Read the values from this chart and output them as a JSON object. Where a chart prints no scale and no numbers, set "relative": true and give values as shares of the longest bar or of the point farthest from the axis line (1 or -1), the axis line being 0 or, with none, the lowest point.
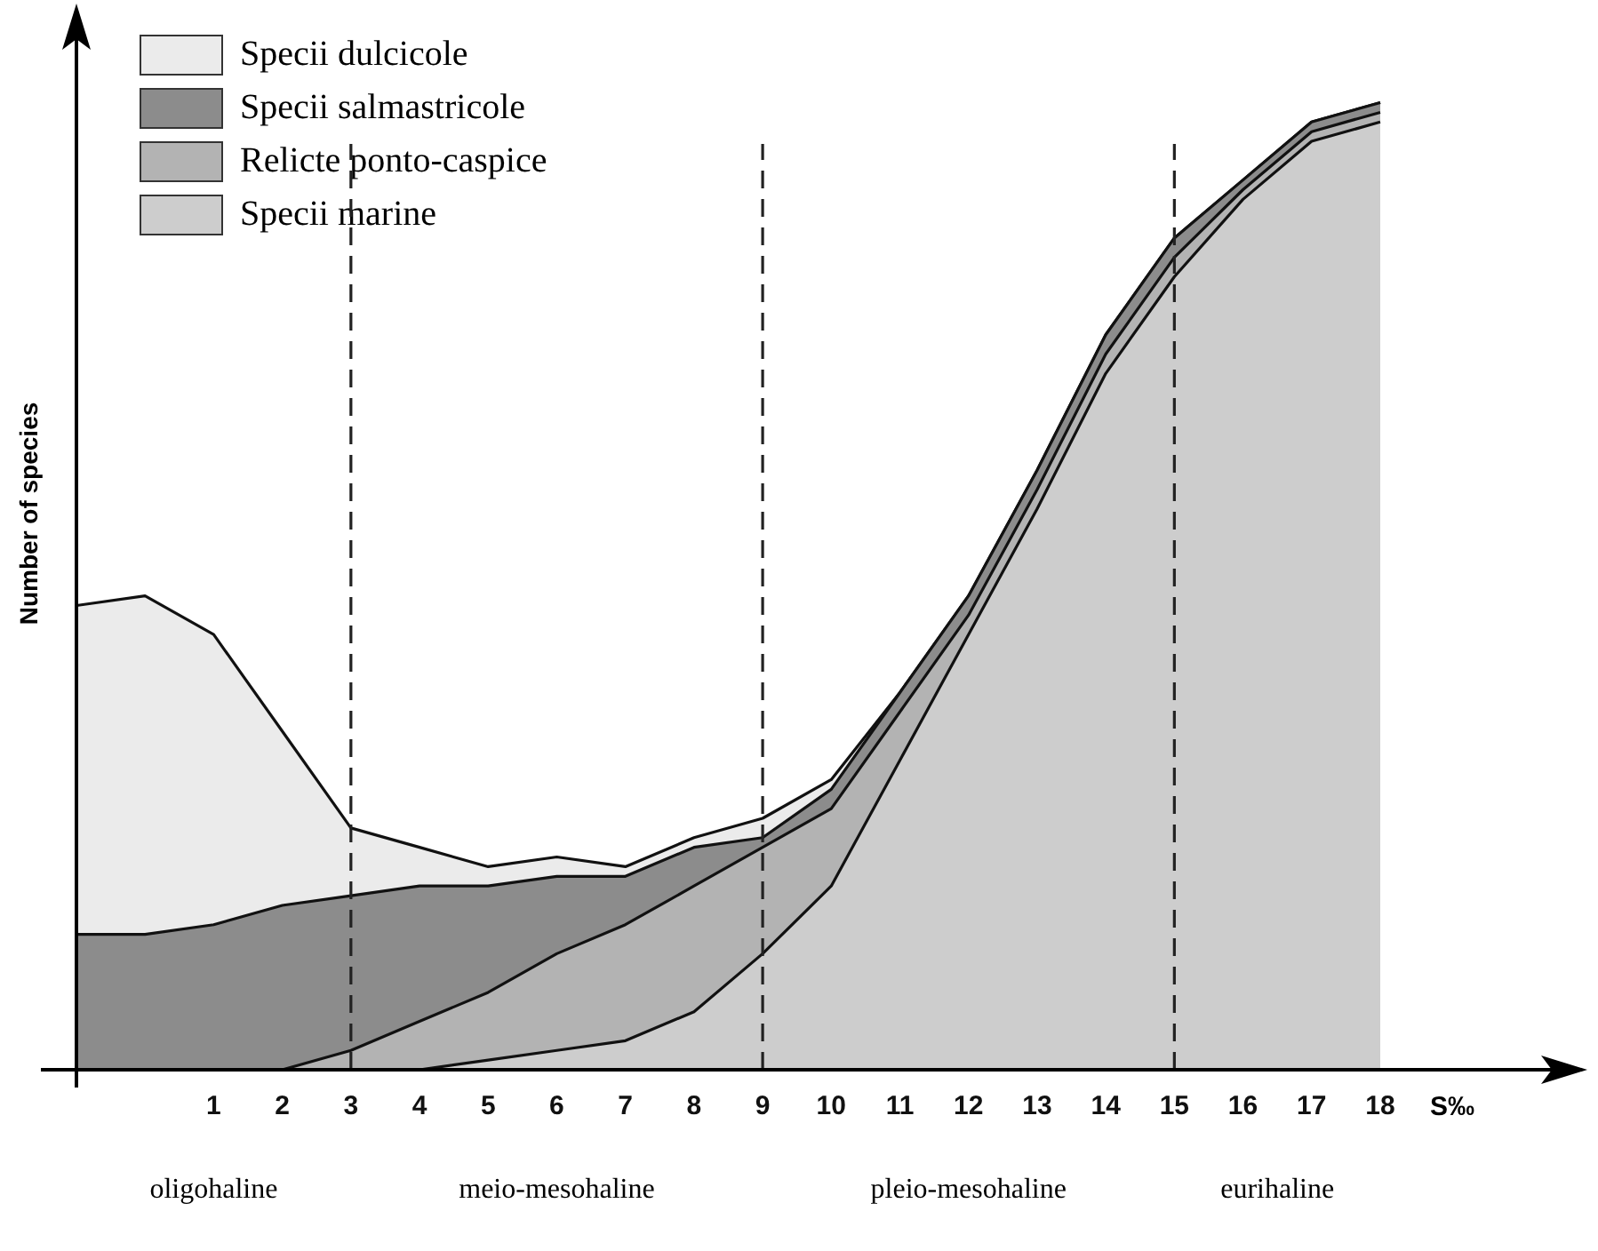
{
  "chart_data": {
    "type": "area",
    "stacked": true,
    "relative": true,
    "xlabel": "S‰",
    "ylabel": "Number of species",
    "x": [
      -1,
      0,
      1,
      2,
      3,
      4,
      5,
      6,
      7,
      8,
      9,
      10,
      11,
      12,
      13,
      14,
      15,
      16,
      17,
      18
    ],
    "xlim": [
      -1,
      20.5
    ],
    "xticks": [
      1,
      2,
      3,
      4,
      5,
      6,
      7,
      8,
      9,
      10,
      11,
      12,
      13,
      14,
      15,
      16,
      17,
      18
    ],
    "series": [
      {
        "name": "Specii marine",
        "color": "#cdcdcd",
        "values": [
          0,
          0,
          0,
          0,
          0,
          0,
          0.01,
          0.02,
          0.03,
          0.06,
          0.12,
          0.19,
          0.32,
          0.45,
          0.58,
          0.72,
          0.82,
          0.9,
          0.96,
          0.98
        ]
      },
      {
        "name": "Relicte ponto-caspice",
        "color": "#b3b3b3",
        "values": [
          0,
          0,
          0,
          0,
          0.02,
          0.05,
          0.07,
          0.1,
          0.12,
          0.13,
          0.11,
          0.08,
          0.05,
          0.02,
          0.02,
          0.02,
          0.02,
          0.01,
          0.01,
          0.01
        ]
      },
      {
        "name": "Specii salmastricole",
        "color": "#8c8c8c",
        "values": [
          0.14,
          0.14,
          0.15,
          0.17,
          0.16,
          0.14,
          0.11,
          0.08,
          0.05,
          0.04,
          0.01,
          0.02,
          0.02,
          0.02,
          0.02,
          0.02,
          0.02,
          0.01,
          0.01,
          0.01
        ]
      },
      {
        "name": "Specii dulcicole",
        "color": "#ebebeb",
        "values": [
          0.34,
          0.35,
          0.3,
          0.18,
          0.07,
          0.04,
          0.02,
          0.02,
          0.01,
          0.01,
          0.02,
          0.01,
          0,
          0,
          0,
          0,
          0,
          0,
          0,
          0
        ]
      }
    ],
    "ref_lines": [
      {
        "axis": "x",
        "value": 3,
        "color": "#222222",
        "line_style": "dashed"
      },
      {
        "axis": "x",
        "value": 9,
        "color": "#222222",
        "line_style": "dashed"
      },
      {
        "axis": "x",
        "value": 15,
        "color": "#222222",
        "line_style": "dashed"
      }
    ],
    "annotations": [
      "oligohaline",
      "meio-mesohaline",
      "pleio-mesohaline",
      "eurihaline"
    ],
    "legend": "top left",
    "grid": false
  }
}
